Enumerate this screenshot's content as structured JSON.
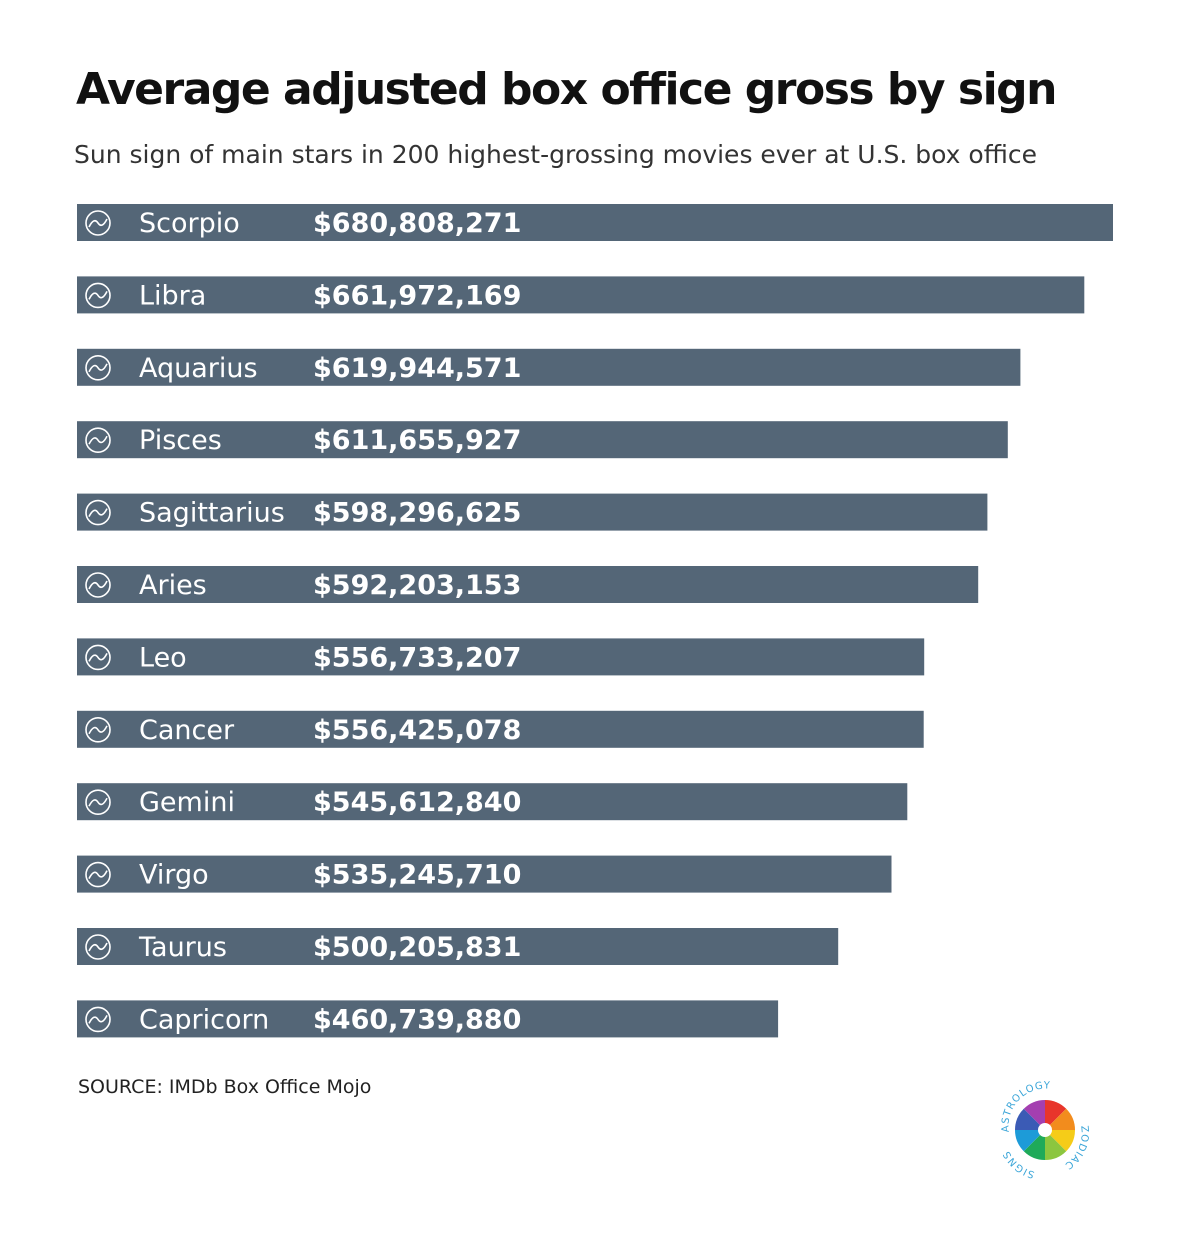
{
  "chart_data": {
    "type": "bar",
    "orientation": "horizontal",
    "title": "Average adjusted box office gross by sign",
    "subtitle": "Sun sign of main stars in 200 highest-grossing movies ever at U.S. box office",
    "categories": [
      "Scorpio",
      "Libra",
      "Aquarius",
      "Pisces",
      "Sagittarius",
      "Aries",
      "Leo",
      "Cancer",
      "Gemini",
      "Virgo",
      "Taurus",
      "Capricorn"
    ],
    "values": [
      680808271,
      661972169,
      619944571,
      611655927,
      598296625,
      592203153,
      556733207,
      556425078,
      545612840,
      535245710,
      500205831,
      460739880
    ],
    "value_labels": [
      "$680,808,271",
      "$661,972,169",
      "$619,944,571",
      "$611,655,927",
      "$598,296,625",
      "$592,203,153",
      "$556,733,207",
      "$556,425,078",
      "$545,612,840",
      "$535,245,710",
      "$500,205,831",
      "$460,739,880"
    ],
    "icons": [
      "scorpio-icon",
      "libra-icon",
      "aquarius-icon",
      "pisces-icon",
      "sagittarius-icon",
      "aries-icon",
      "leo-icon",
      "cancer-icon",
      "gemini-icon",
      "virgo-icon",
      "taurus-icon",
      "capricorn-icon"
    ],
    "bar_color": "#546677",
    "grid": false,
    "legend": "none"
  },
  "source": "SOURCE: IMDb Box Office Mojo",
  "logo": {
    "top_text": "ASTROLOGY",
    "right_text": "ZODIAC",
    "left_text": "SIGNS"
  }
}
